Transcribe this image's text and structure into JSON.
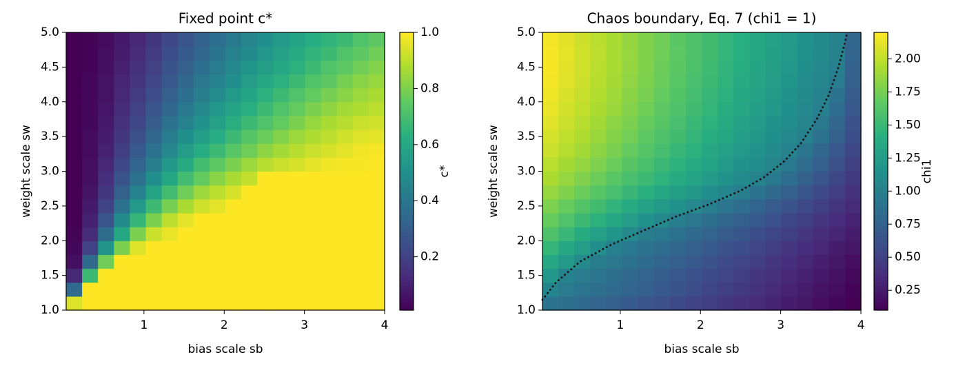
{
  "chart_data": [
    {
      "type": "heatmap",
      "title": "Fixed point c*",
      "xlabel": "bias scale sb",
      "ylabel": "weight scale sw",
      "colorbar_label": "c*",
      "colormap": "viridis",
      "xlim": [
        0.03,
        4
      ],
      "ylim": [
        1,
        5
      ],
      "zlim": [
        0.01,
        1
      ],
      "xticks": [
        1,
        2,
        3,
        4
      ],
      "yticks": [
        {
          "value": 1,
          "label": "1.0"
        },
        1.5,
        {
          "value": 2,
          "label": "2.0"
        },
        2.5,
        {
          "value": 3,
          "label": "3.0"
        },
        3.5,
        {
          "value": 4,
          "label": "4.0"
        },
        4.5,
        {
          "value": 5,
          "label": "5.0"
        }
      ],
      "zticks": [
        0.2,
        0.4,
        0.6,
        0.8,
        {
          "value": 1,
          "label": "1.0"
        }
      ],
      "values": [
        [
          0.95,
          1,
          1,
          1,
          1,
          1,
          1,
          1,
          1,
          1,
          1,
          1,
          1,
          1,
          1,
          1,
          1,
          1,
          1,
          1
        ],
        [
          0.35,
          1,
          1,
          1,
          1,
          1,
          1,
          1,
          1,
          1,
          1,
          1,
          1,
          1,
          1,
          1,
          1,
          1,
          1,
          1
        ],
        [
          0.12,
          0.68,
          1,
          1,
          1,
          1,
          1,
          1,
          1,
          1,
          1,
          1,
          1,
          1,
          1,
          1,
          1,
          1,
          1,
          1
        ],
        [
          0.05,
          0.35,
          0.78,
          1,
          1,
          1,
          1,
          1,
          1,
          1,
          1,
          1,
          1,
          1,
          1,
          1,
          1,
          1,
          1,
          1
        ],
        [
          0.03,
          0.2,
          0.52,
          0.8,
          0.95,
          1,
          1,
          1,
          1,
          1,
          1,
          1,
          1,
          1,
          1,
          1,
          1,
          1,
          1,
          1
        ],
        [
          0.02,
          0.13,
          0.36,
          0.6,
          0.8,
          0.92,
          0.97,
          1,
          1,
          1,
          1,
          1,
          1,
          1,
          1,
          1,
          1,
          1,
          1,
          1
        ],
        [
          0.01,
          0.1,
          0.27,
          0.48,
          0.66,
          0.8,
          0.9,
          0.96,
          1,
          1,
          1,
          1,
          1,
          1,
          1,
          1,
          1,
          1,
          1,
          1
        ],
        [
          0.01,
          0.08,
          0.21,
          0.38,
          0.54,
          0.68,
          0.79,
          0.87,
          0.93,
          0.96,
          1,
          1,
          1,
          1,
          1,
          1,
          1,
          1,
          1,
          1
        ],
        [
          0.01,
          0.06,
          0.17,
          0.31,
          0.45,
          0.58,
          0.69,
          0.78,
          0.85,
          0.9,
          0.94,
          1,
          1,
          1,
          1,
          1,
          1,
          1,
          1,
          1
        ],
        [
          0.01,
          0.05,
          0.14,
          0.26,
          0.38,
          0.5,
          0.6,
          0.69,
          0.76,
          0.82,
          0.87,
          0.91,
          1,
          1,
          1,
          1,
          1,
          1,
          1,
          1
        ],
        [
          0.01,
          0.05,
          0.12,
          0.22,
          0.33,
          0.43,
          0.53,
          0.61,
          0.69,
          0.75,
          0.8,
          0.85,
          0.89,
          0.92,
          0.94,
          0.96,
          0.98,
          0.99,
          0.99,
          1
        ],
        [
          0.01,
          0.04,
          0.1,
          0.19,
          0.29,
          0.38,
          0.47,
          0.55,
          0.62,
          0.68,
          0.74,
          0.78,
          0.83,
          0.86,
          0.89,
          0.92,
          0.94,
          0.96,
          0.98,
          0.99
        ],
        [
          0.01,
          0.04,
          0.09,
          0.17,
          0.25,
          0.34,
          0.42,
          0.5,
          0.56,
          0.62,
          0.68,
          0.73,
          0.77,
          0.81,
          0.85,
          0.88,
          0.9,
          0.93,
          0.95,
          0.96
        ],
        [
          0.01,
          0.03,
          0.08,
          0.15,
          0.22,
          0.3,
          0.38,
          0.45,
          0.51,
          0.57,
          0.63,
          0.68,
          0.72,
          0.76,
          0.8,
          0.84,
          0.87,
          0.89,
          0.92,
          0.93
        ],
        [
          0.01,
          0.03,
          0.07,
          0.13,
          0.2,
          0.27,
          0.34,
          0.41,
          0.47,
          0.53,
          0.58,
          0.63,
          0.68,
          0.72,
          0.76,
          0.8,
          0.83,
          0.86,
          0.88,
          0.9
        ],
        [
          0.01,
          0.03,
          0.06,
          0.12,
          0.18,
          0.24,
          0.31,
          0.37,
          0.43,
          0.49,
          0.54,
          0.59,
          0.64,
          0.68,
          0.72,
          0.76,
          0.79,
          0.82,
          0.85,
          0.87
        ],
        [
          0.01,
          0.03,
          0.06,
          0.11,
          0.16,
          0.22,
          0.28,
          0.34,
          0.4,
          0.45,
          0.5,
          0.55,
          0.6,
          0.64,
          0.68,
          0.72,
          0.75,
          0.79,
          0.82,
          0.84
        ],
        [
          0.01,
          0.02,
          0.05,
          0.1,
          0.15,
          0.2,
          0.26,
          0.31,
          0.37,
          0.42,
          0.47,
          0.52,
          0.56,
          0.6,
          0.64,
          0.68,
          0.72,
          0.75,
          0.78,
          0.81
        ],
        [
          0.01,
          0.02,
          0.05,
          0.09,
          0.13,
          0.18,
          0.24,
          0.29,
          0.34,
          0.39,
          0.44,
          0.48,
          0.53,
          0.57,
          0.61,
          0.65,
          0.68,
          0.72,
          0.75,
          0.78
        ],
        [
          0.01,
          0.02,
          0.04,
          0.08,
          0.12,
          0.17,
          0.22,
          0.27,
          0.32,
          0.37,
          0.41,
          0.46,
          0.5,
          0.54,
          0.58,
          0.62,
          0.65,
          0.68,
          0.72,
          0.75
        ]
      ]
    },
    {
      "type": "heatmap",
      "title": "Chaos boundary, Eq. 7 (chi1 = 1)",
      "xlabel": "bias scale sb",
      "ylabel": "weight scale sw",
      "colorbar_label": "chi1",
      "colormap": "viridis",
      "xlim": [
        0.03,
        4
      ],
      "ylim": [
        1,
        5
      ],
      "zlim": [
        0.1,
        2.2
      ],
      "xticks": [
        1,
        2,
        3,
        4
      ],
      "yticks": [
        {
          "value": 1,
          "label": "1.0"
        },
        1.5,
        {
          "value": 2,
          "label": "2.0"
        },
        2.5,
        {
          "value": 3,
          "label": "3.0"
        },
        3.5,
        {
          "value": 4,
          "label": "4.0"
        },
        4.5,
        {
          "value": 5,
          "label": "5.0"
        }
      ],
      "zticks": [
        0.25,
        {
          "value": 0.5,
          "label": "0.50"
        },
        0.75,
        {
          "value": 1,
          "label": "1.00"
        },
        1.25,
        {
          "value": 1.5,
          "label": "1.50"
        },
        1.75,
        {
          "value": 2,
          "label": "2.00"
        }
      ],
      "values": [
        [
          0.9,
          0.86,
          0.82,
          0.77,
          0.73,
          0.69,
          0.65,
          0.61,
          0.56,
          0.52,
          0.48,
          0.44,
          0.39,
          0.35,
          0.31,
          0.27,
          0.23,
          0.18,
          0.14,
          0.1
        ],
        [
          1.05,
          0.96,
          0.91,
          0.86,
          0.82,
          0.77,
          0.73,
          0.68,
          0.63,
          0.59,
          0.54,
          0.49,
          0.45,
          0.4,
          0.35,
          0.31,
          0.26,
          0.21,
          0.17,
          0.12
        ],
        [
          1.2,
          1.02,
          0.96,
          0.91,
          0.86,
          0.81,
          0.77,
          0.72,
          0.67,
          0.62,
          0.58,
          0.53,
          0.48,
          0.43,
          0.39,
          0.34,
          0.29,
          0.24,
          0.2,
          0.15
        ],
        [
          1.35,
          1.22,
          1.09,
          0.98,
          0.93,
          0.88,
          0.83,
          0.78,
          0.73,
          0.68,
          0.63,
          0.58,
          0.53,
          0.48,
          0.43,
          0.38,
          0.33,
          0.28,
          0.23,
          0.18
        ],
        [
          1.48,
          1.36,
          1.25,
          1.13,
          1.01,
          0.95,
          0.9,
          0.85,
          0.8,
          0.74,
          0.69,
          0.64,
          0.59,
          0.53,
          0.48,
          0.43,
          0.38,
          0.33,
          0.27,
          0.22
        ],
        [
          1.6,
          1.5,
          1.39,
          1.29,
          1.19,
          1.09,
          0.99,
          0.94,
          0.88,
          0.82,
          0.77,
          0.71,
          0.66,
          0.6,
          0.54,
          0.49,
          0.43,
          0.37,
          0.32,
          0.26
        ],
        [
          1.7,
          1.61,
          1.52,
          1.43,
          1.34,
          1.25,
          1.16,
          1.08,
          0.99,
          0.93,
          0.87,
          0.8,
          0.74,
          0.68,
          0.62,
          0.55,
          0.49,
          0.43,
          0.36,
          0.3
        ],
        [
          1.78,
          1.7,
          1.62,
          1.54,
          1.46,
          1.38,
          1.3,
          1.23,
          1.15,
          1.07,
          0.99,
          0.92,
          0.85,
          0.78,
          0.71,
          0.63,
          0.56,
          0.49,
          0.42,
          0.35
        ],
        [
          1.86,
          1.79,
          1.71,
          1.64,
          1.57,
          1.5,
          1.42,
          1.35,
          1.28,
          1.21,
          1.13,
          1.06,
          0.99,
          0.9,
          0.82,
          0.74,
          0.65,
          0.57,
          0.48,
          0.4
        ],
        [
          1.93,
          1.86,
          1.79,
          1.72,
          1.65,
          1.58,
          1.52,
          1.45,
          1.38,
          1.31,
          1.24,
          1.17,
          1.1,
          1.03,
          0.95,
          0.85,
          0.75,
          0.65,
          0.55,
          0.45
        ],
        [
          1.98,
          1.91,
          1.85,
          1.78,
          1.71,
          1.64,
          1.58,
          1.51,
          1.44,
          1.38,
          1.31,
          1.24,
          1.17,
          1.11,
          1.04,
          0.95,
          0.84,
          0.73,
          0.61,
          0.5
        ],
        [
          2.03,
          1.96,
          1.9,
          1.83,
          1.76,
          1.69,
          1.63,
          1.56,
          1.49,
          1.43,
          1.36,
          1.29,
          1.22,
          1.16,
          1.09,
          1.02,
          0.92,
          0.8,
          0.67,
          0.55
        ],
        [
          2.07,
          2,
          1.94,
          1.87,
          1.8,
          1.74,
          1.67,
          1.6,
          1.54,
          1.47,
          1.4,
          1.34,
          1.27,
          1.21,
          1.14,
          1.07,
          1.01,
          0.88,
          0.74,
          0.6
        ],
        [
          2.1,
          2.03,
          1.97,
          1.9,
          1.83,
          1.77,
          1.7,
          1.64,
          1.57,
          1.5,
          1.44,
          1.37,
          1.3,
          1.24,
          1.17,
          1.11,
          1.04,
          0.94,
          0.79,
          0.64
        ],
        [
          2.13,
          2.06,
          2,
          1.93,
          1.87,
          1.8,
          1.73,
          1.67,
          1.6,
          1.54,
          1.47,
          1.4,
          1.34,
          1.27,
          1.2,
          1.14,
          1.07,
          1.01,
          0.85,
          0.68
        ],
        [
          2.15,
          2.08,
          2.02,
          1.95,
          1.89,
          1.82,
          1.76,
          1.69,
          1.62,
          1.56,
          1.49,
          1.43,
          1.36,
          1.3,
          1.23,
          1.16,
          1.1,
          1.03,
          0.9,
          0.71
        ],
        [
          2.17,
          2.1,
          2.04,
          1.97,
          1.91,
          1.84,
          1.78,
          1.71,
          1.65,
          1.58,
          1.52,
          1.45,
          1.38,
          1.32,
          1.25,
          1.19,
          1.12,
          1.06,
          0.97,
          0.74
        ],
        [
          2.18,
          2.11,
          2.05,
          1.98,
          1.92,
          1.85,
          1.79,
          1.72,
          1.66,
          1.59,
          1.53,
          1.46,
          1.4,
          1.33,
          1.27,
          1.2,
          1.14,
          1.07,
          1.01,
          0.76
        ],
        [
          2.18,
          2.12,
          2.05,
          1.99,
          1.92,
          1.86,
          1.79,
          1.73,
          1.67,
          1.6,
          1.54,
          1.47,
          1.41,
          1.34,
          1.28,
          1.22,
          1.15,
          1.09,
          1.02,
          0.78
        ],
        [
          2.17,
          2.11,
          2.04,
          1.98,
          1.92,
          1.85,
          1.79,
          1.73,
          1.66,
          1.6,
          1.54,
          1.47,
          1.41,
          1.35,
          1.29,
          1.22,
          1.16,
          1.1,
          1.03,
          0.8
        ]
      ],
      "lines": [
        {
          "color": "#1a1a1a",
          "style": "dotted",
          "x": [
            0.03,
            0.2,
            0.5,
            0.9,
            1.3,
            1.7,
            2.1,
            2.5,
            2.8,
            3.05,
            3.25,
            3.45,
            3.6,
            3.72,
            3.8,
            3.83
          ],
          "y": [
            1.15,
            1.4,
            1.7,
            1.95,
            2.15,
            2.35,
            2.52,
            2.72,
            2.92,
            3.15,
            3.4,
            3.75,
            4.1,
            4.5,
            4.85,
            5
          ]
        }
      ]
    }
  ]
}
